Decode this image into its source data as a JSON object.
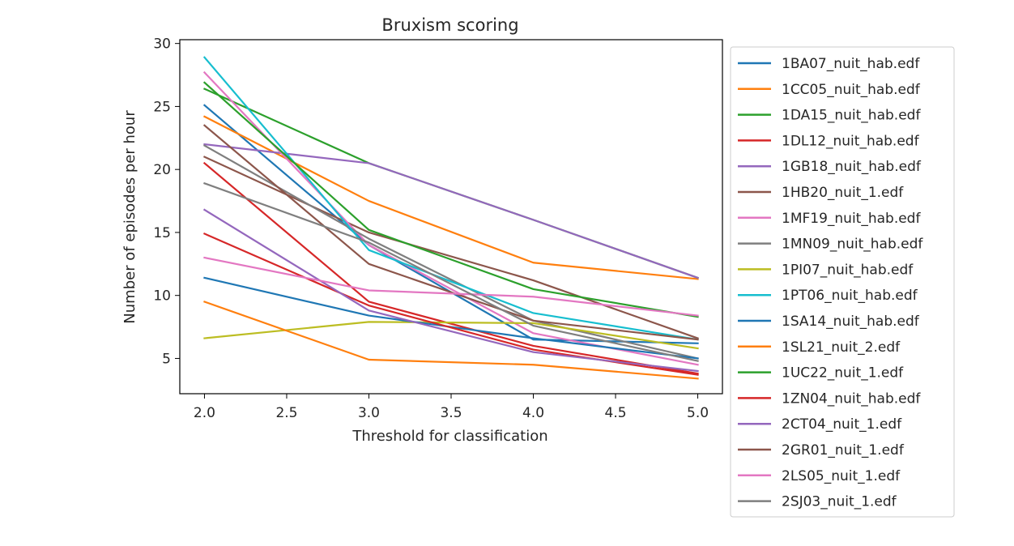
{
  "chart_data": {
    "type": "line",
    "title": "Bruxism scoring",
    "xlabel": "Threshold for classification",
    "ylabel": "Number of episodes per hour",
    "x": [
      2.0,
      3.0,
      4.0,
      5.0
    ],
    "xlim": [
      1.85,
      5.15
    ],
    "ylim": [
      2.2,
      30.3
    ],
    "xticks": [
      "2.0",
      "2.5",
      "3.0",
      "3.5",
      "4.0",
      "4.5",
      "5.0"
    ],
    "xtick_values": [
      2.0,
      2.5,
      3.0,
      3.5,
      4.0,
      4.5,
      5.0
    ],
    "yticks": [
      "5",
      "10",
      "15",
      "20",
      "25",
      "30"
    ],
    "ytick_values": [
      5,
      10,
      15,
      20,
      25,
      30
    ],
    "grid": false,
    "legend_position": "outside-right",
    "series": [
      {
        "name": "1BA07_nuit_hab.edf",
        "color": "#1f77b4",
        "values": [
          25.1,
          14.0,
          6.5,
          6.2
        ]
      },
      {
        "name": "1CC05_nuit_hab.edf",
        "color": "#ff7f0e",
        "values": [
          24.2,
          17.5,
          12.6,
          11.3
        ]
      },
      {
        "name": "1DA15_nuit_hab.edf",
        "color": "#2ca02c",
        "values": [
          26.4,
          20.5,
          16.0,
          11.4
        ]
      },
      {
        "name": "1DL12_nuit_hab.edf",
        "color": "#d62728",
        "values": [
          20.5,
          9.5,
          6.0,
          3.8
        ]
      },
      {
        "name": "1GB18_nuit_hab.edf",
        "color": "#9467bd",
        "values": [
          22.0,
          20.5,
          16.0,
          11.4
        ]
      },
      {
        "name": "1HB20_nuit_1.edf",
        "color": "#8c564b",
        "values": [
          21.0,
          15.0,
          11.2,
          6.6
        ]
      },
      {
        "name": "1MF19_nuit_hab.edf",
        "color": "#e377c2",
        "values": [
          27.7,
          14.0,
          7.0,
          4.5
        ]
      },
      {
        "name": "1MN09_nuit_hab.edf",
        "color": "#7f7f7f",
        "values": [
          21.9,
          14.5,
          8.0,
          5.0
        ]
      },
      {
        "name": "1PI07_nuit_hab.edf",
        "color": "#bcbd22",
        "values": [
          6.6,
          7.9,
          7.8,
          5.8
        ]
      },
      {
        "name": "1PT06_nuit_hab.edf",
        "color": "#17becf",
        "values": [
          28.9,
          13.6,
          8.6,
          6.5
        ]
      },
      {
        "name": "1SA14_nuit_hab.edf",
        "color": "#1f77b4",
        "values": [
          11.4,
          8.4,
          6.6,
          5.0
        ]
      },
      {
        "name": "1SL21_nuit_2.edf",
        "color": "#ff7f0e",
        "values": [
          9.5,
          4.9,
          4.5,
          3.4
        ]
      },
      {
        "name": "1UC22_nuit_1.edf",
        "color": "#2ca02c",
        "values": [
          26.9,
          15.2,
          10.5,
          8.3
        ]
      },
      {
        "name": "1ZN04_nuit_hab.edf",
        "color": "#d62728",
        "values": [
          14.9,
          9.2,
          5.7,
          3.7
        ]
      },
      {
        "name": "2CT04_nuit_1.edf",
        "color": "#9467bd",
        "values": [
          16.8,
          8.8,
          5.5,
          4.0
        ]
      },
      {
        "name": "2GR01_nuit_1.edf",
        "color": "#8c564b",
        "values": [
          23.5,
          12.5,
          8.0,
          6.5
        ]
      },
      {
        "name": "2LS05_nuit_1.edf",
        "color": "#e377c2",
        "values": [
          13.0,
          10.4,
          9.9,
          8.4
        ]
      },
      {
        "name": "2SJ03_nuit_1.edf",
        "color": "#7f7f7f",
        "values": [
          18.9,
          14.2,
          7.6,
          4.8
        ]
      }
    ]
  }
}
